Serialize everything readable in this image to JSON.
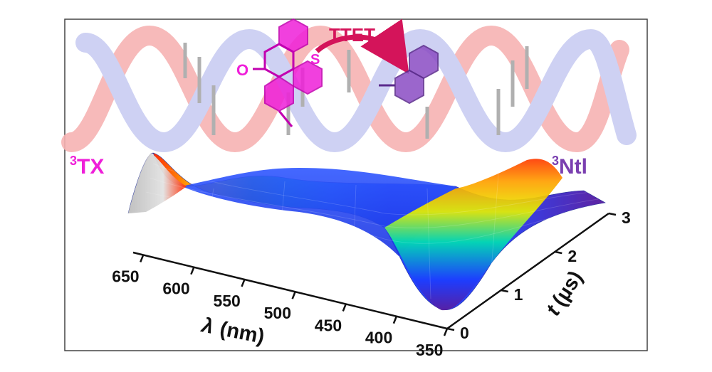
{
  "colors": {
    "helix_red": "#f7b3b3",
    "helix_blue": "#c9cdf2",
    "tx_magenta": "#ef1fd9",
    "ntl_purple": "#7a3fb0",
    "arrow": "#d4145a",
    "frame": "#444444"
  },
  "scheme": {
    "donor_label_superscript": "3",
    "donor_label": "TX",
    "acceptor_label_superscript": "3",
    "acceptor_label": "Ntl",
    "transfer_label": "TTET",
    "carbonyl_label": "O",
    "sulfur_label": "S"
  },
  "chart_data": {
    "type": "surface",
    "title": "",
    "xlabel_symbol": "λ",
    "xlabel_unit": "(nm)",
    "ylabel_symbol": "t",
    "ylabel_unit": "(µs)",
    "x_ticks": [
      650,
      600,
      550,
      500,
      450,
      400,
      350
    ],
    "y_ticks": [
      0,
      1,
      2,
      3
    ],
    "xlim": [
      350,
      660
    ],
    "ylim": [
      0,
      3
    ],
    "colormap": [
      "#5a1d9e",
      "#1c3dff",
      "#1aa0ff",
      "#00e0b0",
      "#30e040",
      "#e6f000",
      "#ffa000",
      "#ff2000",
      "#d0d0d0"
    ],
    "series": [
      {
        "name": "3TX (t = 0 µs)",
        "x": [
          660,
          640,
          620,
          600,
          580,
          560,
          540,
          520,
          500,
          480,
          460,
          440,
          420,
          400,
          380,
          360,
          350
        ],
        "values": [
          0.55,
          1.0,
          0.78,
          0.45,
          0.28,
          0.2,
          0.15,
          0.12,
          0.1,
          0.09,
          0.08,
          0.06,
          -0.05,
          -0.35,
          -0.55,
          -0.1,
          0.05
        ]
      },
      {
        "name": "3Ntl (t = 3 µs)",
        "x": [
          660,
          640,
          620,
          600,
          580,
          560,
          540,
          520,
          500,
          480,
          460,
          440,
          420,
          400,
          380,
          360,
          350
        ],
        "values": [
          0.05,
          0.05,
          0.05,
          0.05,
          0.06,
          0.06,
          0.06,
          0.06,
          0.07,
          0.08,
          0.1,
          0.15,
          0.3,
          0.55,
          0.85,
          0.75,
          0.35
        ]
      }
    ]
  }
}
